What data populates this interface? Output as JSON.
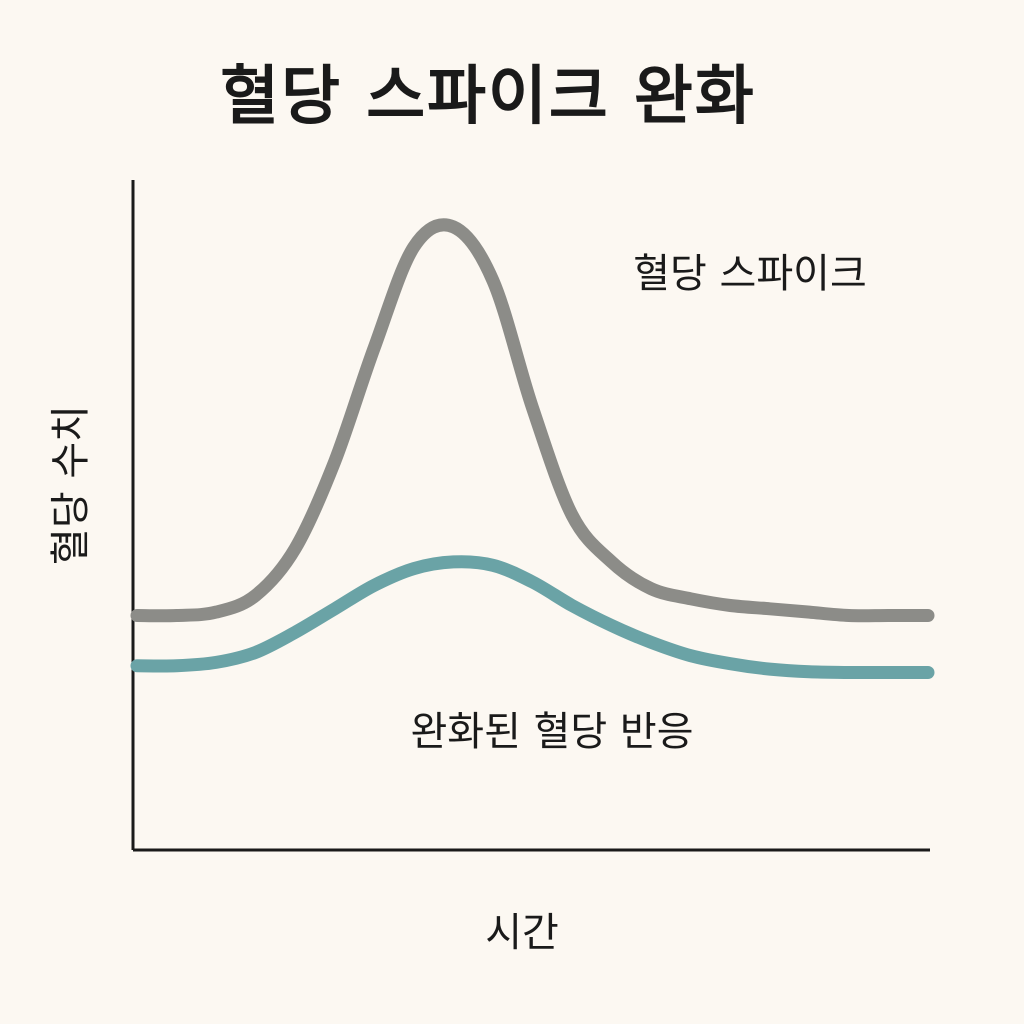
{
  "chart_data": {
    "type": "line",
    "title": "혈당 스파이크 완화",
    "xlabel": "시간",
    "ylabel": "혈당 수치",
    "x": [
      0,
      5,
      10,
      15,
      20,
      25,
      30,
      35,
      40,
      45,
      50,
      55,
      60,
      65,
      70,
      75,
      80,
      85,
      90,
      95,
      100
    ],
    "xlim": [
      0,
      100
    ],
    "ylim": [
      0,
      100
    ],
    "grid": false,
    "series": [
      {
        "name": "혈당 스파이크",
        "color": "#8c8c88",
        "values": [
          35,
          35,
          35.5,
          38,
          45,
          58,
          75,
          90,
          93,
          85,
          66,
          50,
          43,
          39,
          37.5,
          36.5,
          36,
          35.5,
          35,
          35,
          35
        ]
      },
      {
        "name": "완화된 혈당 반응",
        "color": "#6aa3a6",
        "values": [
          27.5,
          27.5,
          28,
          29.5,
          32.5,
          36,
          39.5,
          42,
          43,
          42.5,
          40,
          36.5,
          33.5,
          31,
          29,
          27.8,
          27,
          26.6,
          26.5,
          26.5,
          26.5
        ]
      }
    ]
  },
  "ui": {
    "background": "#fcf8f2",
    "text_color": "#1a1a1a",
    "axis_color": "#1a1a1a"
  }
}
